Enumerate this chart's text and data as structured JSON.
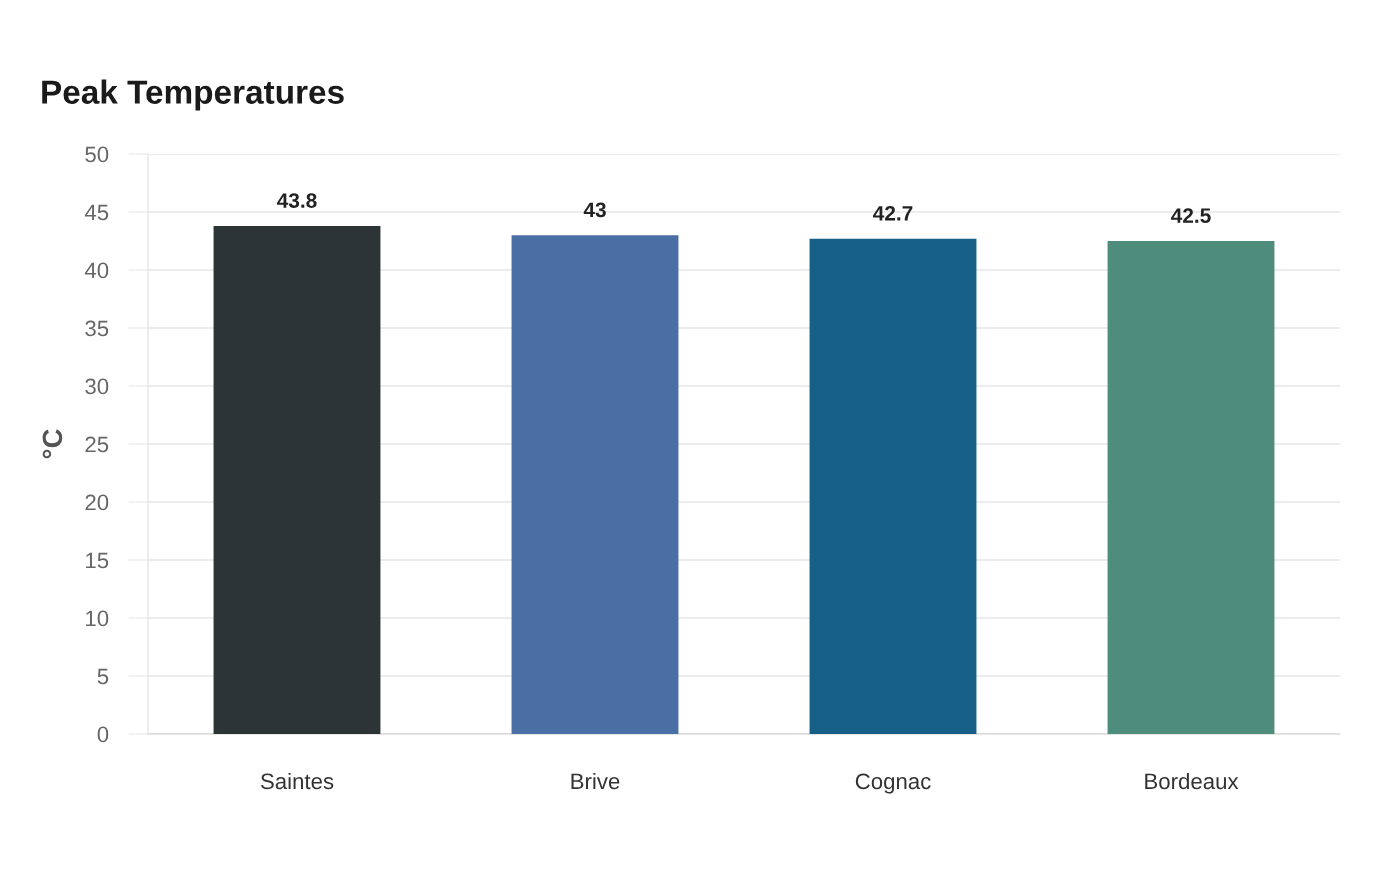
{
  "chart_data": {
    "type": "bar",
    "title": "Peak Temperatures",
    "ylabel": "°C",
    "categories": [
      "Saintes",
      "Brive",
      "Cognac",
      "Bordeaux"
    ],
    "values": [
      43.8,
      43,
      42.7,
      42.5
    ],
    "colors": [
      "#2d3436",
      "#4a6fa5",
      "#166088",
      "#4e8d7c"
    ],
    "ylim": [
      0,
      50
    ],
    "yticks": [
      0,
      5,
      10,
      15,
      20,
      25,
      30,
      35,
      40,
      45,
      50
    ],
    "grid": "y",
    "data_labels": true
  }
}
